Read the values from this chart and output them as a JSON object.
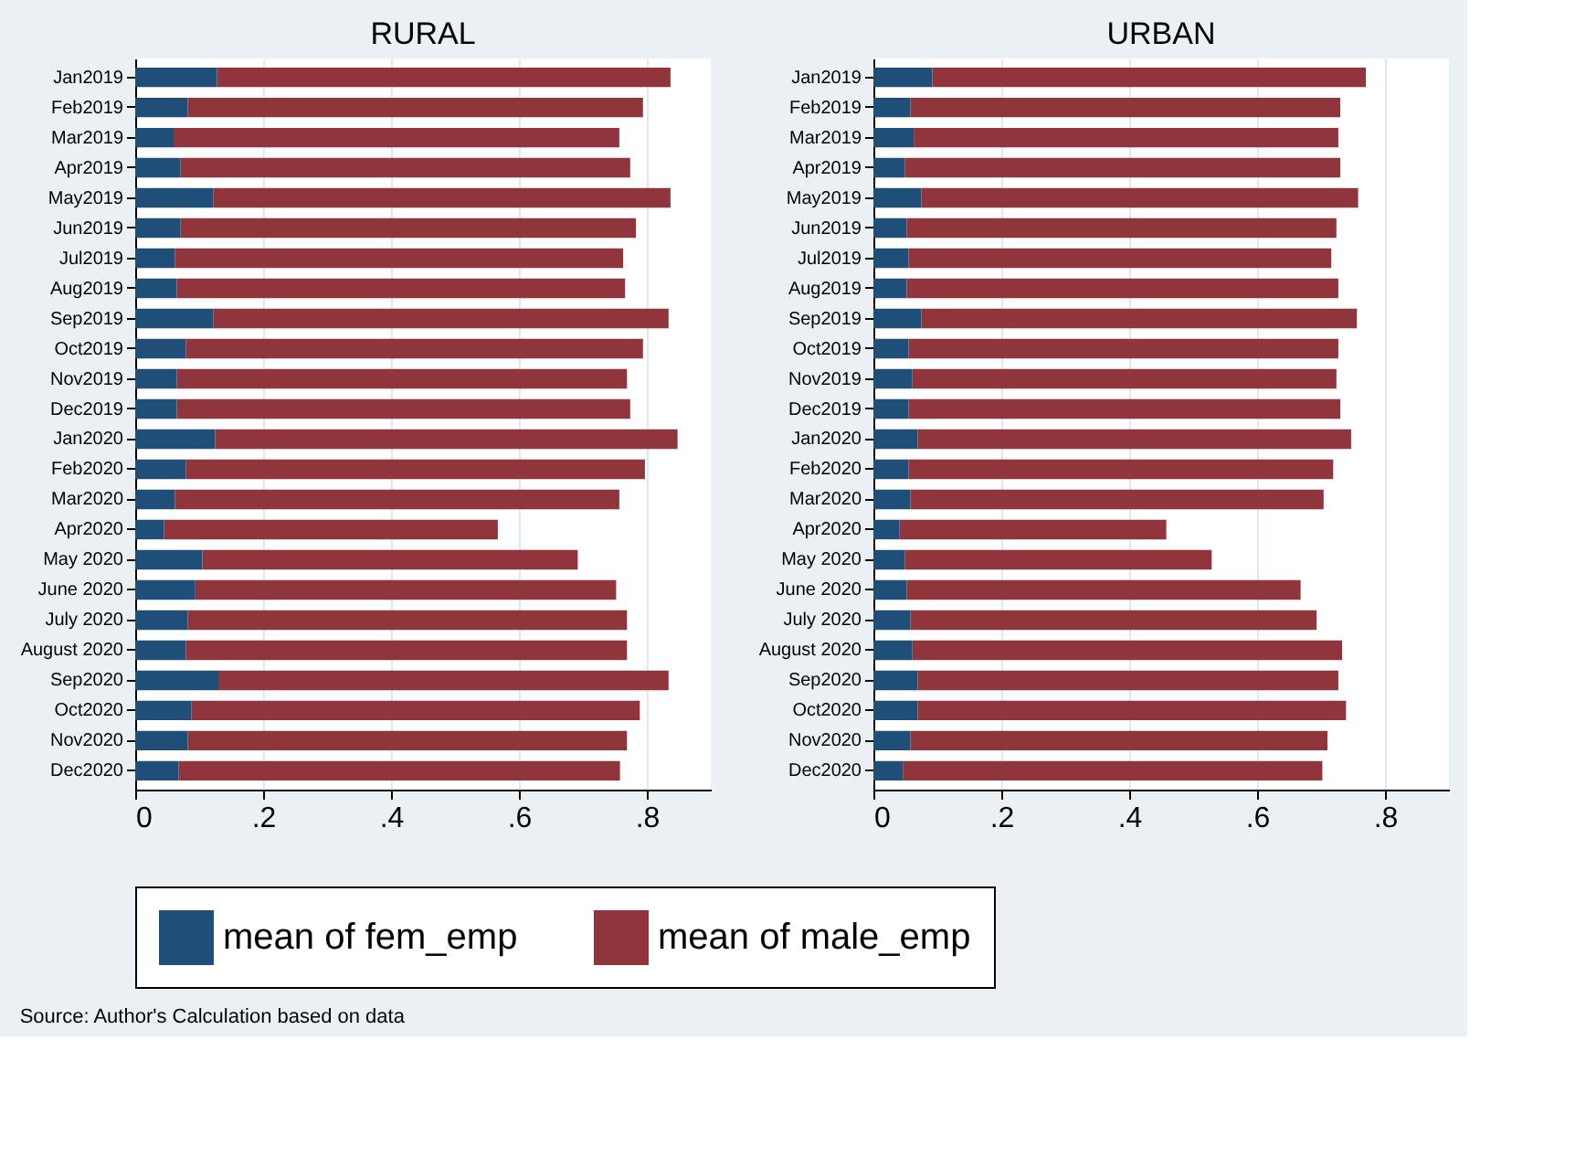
{
  "chart_data": [
    {
      "type": "bar",
      "orientation": "horizontal",
      "stacked": true,
      "title": "RURAL",
      "categories": [
        "Jan2019",
        "Feb2019",
        "Mar2019",
        "Apr2019",
        "May2019",
        "Jun2019",
        "Jul2019",
        "Aug2019",
        "Sep2019",
        "Oct2019",
        "Nov2019",
        "Dec2019",
        "Jan2020",
        "Feb2020",
        "Mar2020",
        "Apr2020",
        "May 2020",
        "June 2020",
        "July 2020",
        "August 2020",
        "Sep2020",
        "Oct2020",
        "Nov2020",
        "Dec2020"
      ],
      "series": [
        {
          "name": "mean of fem_emp",
          "color": "#1f4e79",
          "values": [
            0.128,
            0.082,
            0.06,
            0.071,
            0.122,
            0.071,
            0.062,
            0.065,
            0.122,
            0.079,
            0.065,
            0.065,
            0.125,
            0.079,
            0.062,
            0.045,
            0.105,
            0.094,
            0.082,
            0.079,
            0.13,
            0.088,
            0.082,
            0.068
          ]
        },
        {
          "name": "mean of male_emp",
          "color": "#90353b",
          "values": [
            0.709,
            0.712,
            0.697,
            0.703,
            0.715,
            0.712,
            0.701,
            0.701,
            0.712,
            0.715,
            0.704,
            0.709,
            0.723,
            0.718,
            0.695,
            0.522,
            0.587,
            0.658,
            0.687,
            0.69,
            0.704,
            0.701,
            0.687,
            0.69
          ]
        }
      ],
      "xlim": [
        0,
        0.9
      ],
      "xticks": [
        0,
        {
          "value": 0.2,
          "label": ".2"
        },
        {
          "value": 0.4,
          "label": ".4"
        },
        {
          "value": 0.6,
          "label": ".6"
        },
        {
          "value": 0.8,
          "label": ".8"
        }
      ],
      "grid": "x",
      "legend": "bottom",
      "annotations": [
        "Source: Author's Calculation based on data"
      ]
    },
    {
      "type": "bar",
      "orientation": "horizontal",
      "stacked": true,
      "title": "URBAN",
      "categories": [
        "Jan2019",
        "Feb2019",
        "Mar2019",
        "Apr2019",
        "May2019",
        "Jun2019",
        "Jul2019",
        "Aug2019",
        "Sep2019",
        "Oct2019",
        "Nov2019",
        "Dec2019",
        "Jan2020",
        "Feb2020",
        "Mar2020",
        "Apr2020",
        "May 2020",
        "June 2020",
        "July 2020",
        "August 2020",
        "Sep2020",
        "Oct2020",
        "Nov2020",
        "Dec2020"
      ],
      "series": [
        {
          "name": "mean of fem_emp",
          "color": "#1f4e79",
          "values": [
            0.092,
            0.058,
            0.063,
            0.049,
            0.075,
            0.052,
            0.055,
            0.052,
            0.075,
            0.055,
            0.061,
            0.055,
            0.069,
            0.055,
            0.058,
            0.041,
            0.049,
            0.052,
            0.058,
            0.061,
            0.069,
            0.069,
            0.058,
            0.046
          ]
        },
        {
          "name": "mean of male_emp",
          "color": "#90353b",
          "values": [
            0.678,
            0.672,
            0.664,
            0.681,
            0.683,
            0.672,
            0.661,
            0.675,
            0.681,
            0.672,
            0.663,
            0.675,
            0.678,
            0.664,
            0.646,
            0.417,
            0.48,
            0.616,
            0.635,
            0.672,
            0.658,
            0.67,
            0.652,
            0.656
          ]
        }
      ],
      "xlim": [
        0,
        0.9
      ],
      "xticks": [
        0,
        {
          "value": 0.2,
          "label": ".2"
        },
        {
          "value": 0.4,
          "label": ".4"
        },
        {
          "value": 0.6,
          "label": ".6"
        },
        {
          "value": 0.8,
          "label": ".8"
        }
      ],
      "grid": "x",
      "legend": "bottom"
    }
  ]
}
